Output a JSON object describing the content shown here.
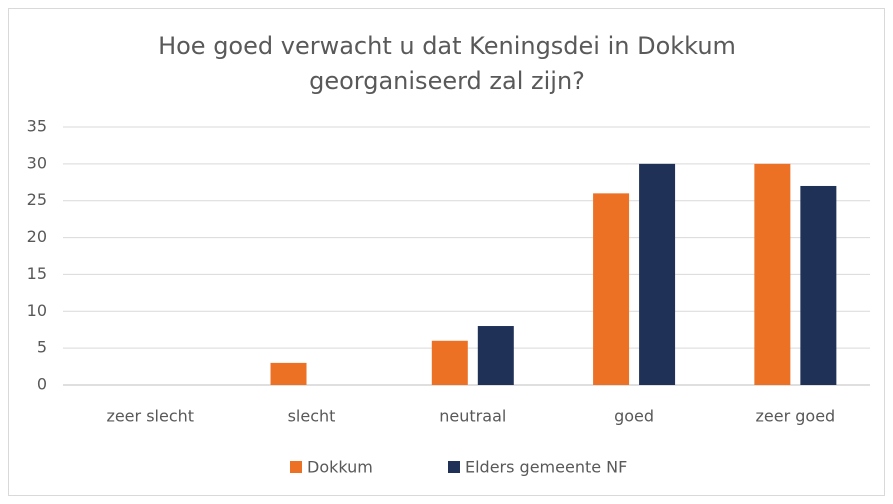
{
  "chart_data": {
    "type": "bar",
    "title": [
      "Hoe goed verwacht u dat Keningsdei in Dokkum",
      "georganiseerd zal zijn?"
    ],
    "categories": [
      "zeer slecht",
      "slecht",
      "neutraal",
      "goed",
      "zeer goed"
    ],
    "series": [
      {
        "name": "Dokkum",
        "color": "#ed7125",
        "values": [
          0,
          3,
          6,
          26,
          30
        ]
      },
      {
        "name": "Elders gemeente NF",
        "color": "#1f3157",
        "values": [
          0,
          0,
          8,
          30,
          27
        ]
      }
    ],
    "ylim": [
      0,
      35
    ],
    "yticks": [
      0,
      5,
      10,
      15,
      20,
      25,
      30,
      35
    ],
    "grid": true,
    "legend": "bottom"
  }
}
